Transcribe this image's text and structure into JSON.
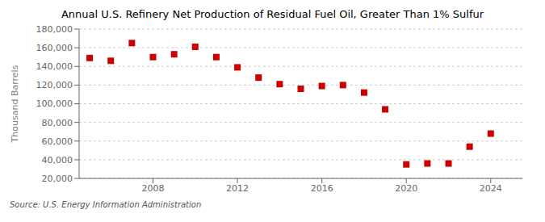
{
  "chart_data": {
    "type": "scatter",
    "title": "Annual U.S. Refinery Net Production of Residual Fuel Oil, Greater Than 1% Sulfur",
    "y_label": "Thousand Barrels",
    "annotations": [
      "Source: U.S. Energy Information Administration"
    ],
    "x": [
      2005,
      2006,
      2007,
      2008,
      2009,
      2010,
      2011,
      2012,
      2013,
      2014,
      2015,
      2016,
      2017,
      2018,
      2019,
      2020,
      2021,
      2022,
      2023,
      2024
    ],
    "values": [
      149000,
      146000,
      165000,
      150000,
      153000,
      161000,
      150000,
      139000,
      128000,
      121000,
      116000,
      119000,
      120000,
      112000,
      94000,
      35000,
      36000,
      36000,
      54000,
      68000
    ],
    "color": "#cc0000",
    "marker": "square",
    "xlim": [
      2004.5,
      2025.5
    ],
    "xticks": [
      2008,
      2012,
      2016,
      2020,
      2024
    ],
    "ylim": [
      20000,
      180000
    ],
    "yticks": [
      {
        "value": 20000,
        "label": "20,000"
      },
      {
        "value": 40000,
        "label": "40,000"
      },
      {
        "value": 60000,
        "label": "60,000"
      },
      {
        "value": 80000,
        "label": "80,000"
      },
      {
        "value": 100000,
        "label": "100,000"
      },
      {
        "value": 120000,
        "label": "120,000"
      },
      {
        "value": 140000,
        "label": "140,000"
      },
      {
        "value": 160000,
        "label": "160,000"
      },
      {
        "value": 180000,
        "label": "180,000"
      }
    ],
    "grid": true
  }
}
